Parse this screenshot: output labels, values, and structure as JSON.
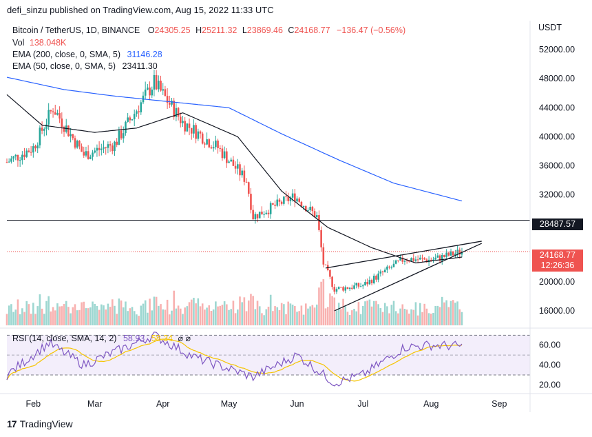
{
  "publisher": "defi_sinzu published on TradingView.com, Aug 15, 2022 11:33 UTC",
  "legend": {
    "symbol": "Bitcoin / TetherUS, 1D, BINANCE",
    "open_label": "O",
    "open": "24305.25",
    "high_label": "H",
    "high": "25211.32",
    "low_label": "L",
    "low": "23869.46",
    "close_label": "C",
    "close": "24168.77",
    "change": "−136.47 (−0.56%)",
    "vol_label": "Vol",
    "vol": "138.048K",
    "ema200_label": "EMA (200, close, 0, SMA, 5)",
    "ema200": "31146.28",
    "ema50_label": "EMA (50, close, 0, SMA, 5)",
    "ema50": "23411.30",
    "rsi_label": "RSI (14, close, SMA, 14, 2)",
    "rsi": "58.93",
    "rsi_sma": "58.34",
    "rsi_icons": "⌀ ⌀"
  },
  "price_axis": {
    "currency": "USDT",
    "ticks": [
      "52000.00",
      "48000.00",
      "44000.00",
      "40000.00",
      "36000.00",
      "32000.00",
      "20000.00",
      "16000.00"
    ],
    "level_tag": "28487.57",
    "price_tag": "24168.77",
    "countdown": "12:26:36"
  },
  "rsi_axis": {
    "ticks": [
      "60.00",
      "40.00",
      "20.00"
    ]
  },
  "time_axis": {
    "labels": [
      "Feb",
      "Mar",
      "Apr",
      "May",
      "Jun",
      "Jul",
      "Aug",
      "Sep"
    ]
  },
  "brand": "TradingView",
  "colors": {
    "up": "#26a69a",
    "down": "#ef5350",
    "ema200": "#2962ff",
    "ema50": "#131722",
    "rsi": "#7e57c2",
    "rsi_sma": "#f5c400",
    "rsi_band": "#f3eefb"
  },
  "chart_data": {
    "type": "line",
    "series": [
      {
        "name": "EMA (200, close, 0, SMA, 5)",
        "x": [
          "Jan 20",
          "Feb 15",
          "Mar 10",
          "Apr 5",
          "May 1",
          "May 25",
          "Jun 20",
          "Jul 15",
          "Aug 15"
        ],
        "values": [
          48200,
          46500,
          45600,
          44800,
          44000,
          40400,
          36800,
          33600,
          31146
        ]
      },
      {
        "name": "EMA (50, close, 0, SMA, 5)",
        "x": [
          "Jan 20",
          "Feb 5",
          "Mar 1",
          "Mar 20",
          "Apr 10",
          "May 5",
          "May 25",
          "Jun 15",
          "Jul 5",
          "Jul 25",
          "Aug 15"
        ],
        "values": [
          45800,
          41600,
          40600,
          41200,
          43300,
          40000,
          32500,
          27500,
          24700,
          22600,
          23411
        ]
      },
      {
        "name": "Close",
        "x": [
          "Jan 20",
          "Feb 1",
          "Feb 10",
          "Feb 24",
          "Mar 10",
          "Mar 28",
          "Apr 10",
          "Apr 26",
          "May 9",
          "May 12",
          "May 31",
          "Jun 10",
          "Jun 13",
          "Jun 18",
          "Jul 1",
          "Jul 20",
          "Aug 1",
          "Aug 15"
        ],
        "values": [
          36500,
          38500,
          44000,
          37500,
          39000,
          47500,
          42000,
          38500,
          34000,
          29000,
          31800,
          29000,
          22500,
          19000,
          19500,
          23200,
          23000,
          24168
        ]
      },
      {
        "name": "RSI (14, close, SMA, 14, 2)",
        "x": [
          "Jan 20",
          "Feb 8",
          "Feb 24",
          "Mar 28",
          "Apr 15",
          "May 12",
          "Jun 1",
          "Jun 18",
          "Jul 1",
          "Jul 20",
          "Aug 1",
          "Aug 15"
        ],
        "values": [
          30,
          62,
          40,
          70,
          48,
          28,
          50,
          22,
          30,
          58,
          60,
          58.93
        ]
      }
    ],
    "horizontal_line": 28487.57,
    "ylim": [
      14000,
      56000
    ],
    "rsi_ylim": [
      14,
      73
    ]
  }
}
